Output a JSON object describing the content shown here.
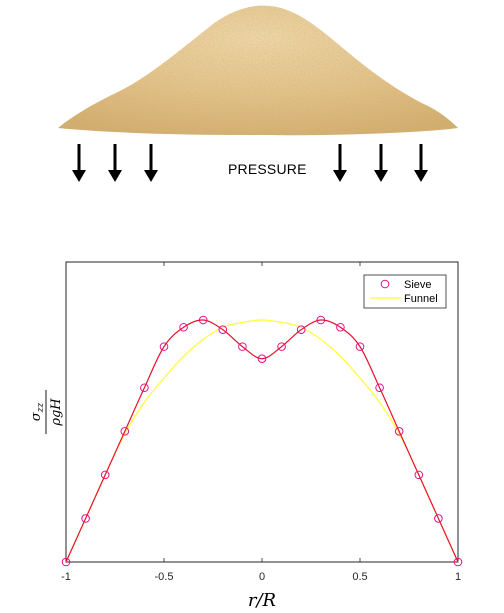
{
  "figure": {
    "pressure_label": "PRESSURE"
  },
  "chart_data": {
    "type": "line",
    "xlabel": "r/R",
    "ylabel": "σzz / ρgH",
    "xlim": [
      -1,
      1
    ],
    "xticks": [
      "-1",
      "-0.5",
      "0",
      "0.5",
      "1"
    ],
    "yticks": [],
    "grid": false,
    "legend_position": "top-right",
    "series": [
      {
        "name": "Sieve",
        "color": "#e0128c",
        "marker": "circle",
        "markers": [
          [
            -1.0,
            0.0
          ],
          [
            -0.9,
            0.18
          ],
          [
            -0.8,
            0.36
          ],
          [
            -0.7,
            0.54
          ],
          [
            -0.6,
            0.72
          ],
          [
            -0.5,
            0.89
          ],
          [
            -0.4,
            0.97
          ],
          [
            -0.3,
            1.0
          ],
          [
            -0.2,
            0.96
          ],
          [
            -0.1,
            0.89
          ],
          [
            0.0,
            0.84
          ],
          [
            0.1,
            0.89
          ],
          [
            0.2,
            0.96
          ],
          [
            0.3,
            1.0
          ],
          [
            0.4,
            0.97
          ],
          [
            0.5,
            0.89
          ],
          [
            0.6,
            0.72
          ],
          [
            0.7,
            0.54
          ],
          [
            0.8,
            0.36
          ],
          [
            0.9,
            0.18
          ],
          [
            1.0,
            0.0
          ]
        ]
      },
      {
        "name": "Funnel",
        "color": "#ffff33",
        "marker": "none",
        "values": [
          [
            -1.0,
            0.0
          ],
          [
            -0.9,
            0.18
          ],
          [
            -0.8,
            0.36
          ],
          [
            -0.7,
            0.53
          ],
          [
            -0.6,
            0.66
          ],
          [
            -0.5,
            0.76
          ],
          [
            -0.4,
            0.85
          ],
          [
            -0.3,
            0.92
          ],
          [
            -0.2,
            0.97
          ],
          [
            -0.1,
            0.99
          ],
          [
            0.0,
            1.0
          ],
          [
            0.1,
            0.99
          ],
          [
            0.2,
            0.97
          ],
          [
            0.3,
            0.92
          ],
          [
            0.4,
            0.85
          ],
          [
            0.5,
            0.76
          ],
          [
            0.6,
            0.66
          ],
          [
            0.7,
            0.53
          ],
          [
            0.8,
            0.36
          ],
          [
            0.9,
            0.18
          ],
          [
            1.0,
            0.0
          ]
        ]
      }
    ]
  }
}
